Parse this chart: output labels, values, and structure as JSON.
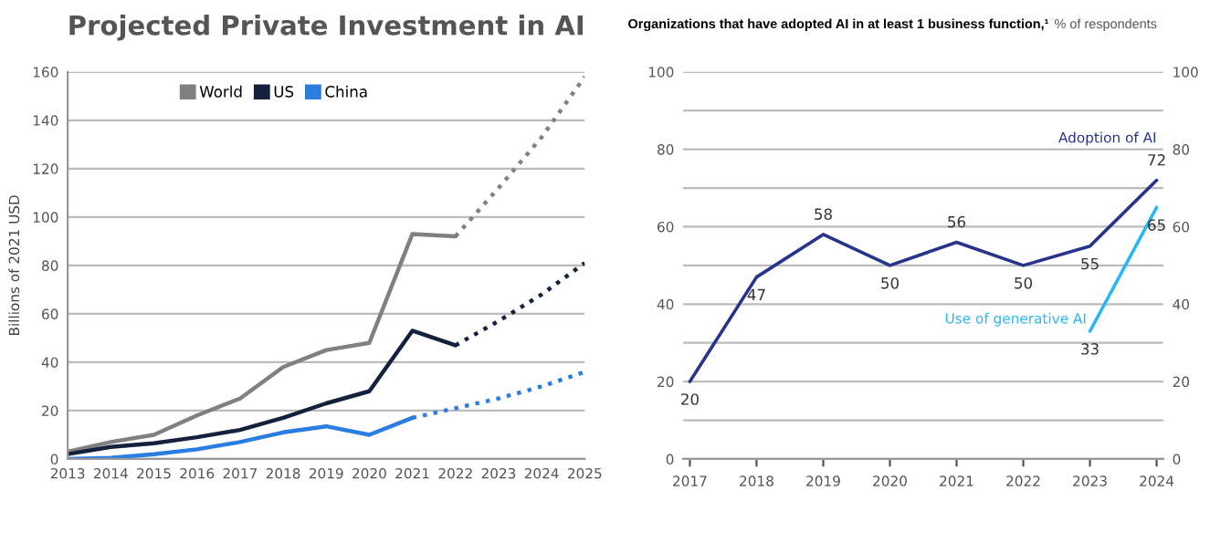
{
  "chart_data": [
    {
      "type": "line",
      "title": "Projected Private Investment in AI",
      "ylabel": "Billions of 2021 USD",
      "xlim": [
        2013,
        2025
      ],
      "xticks": [
        2013,
        2014,
        2015,
        2016,
        2017,
        2018,
        2019,
        2020,
        2021,
        2022,
        2023,
        2024,
        2025
      ],
      "ylim": [
        0,
        160
      ],
      "yticks": [
        0,
        20,
        40,
        60,
        80,
        100,
        120,
        140,
        160
      ],
      "grid": "y",
      "legend": "top",
      "marker": "none",
      "series": [
        {
          "name": "World",
          "color": "#808080",
          "line_style": "solid",
          "x": [
            2013,
            2014,
            2015,
            2016,
            2017,
            2018,
            2019,
            2020,
            2021,
            2022
          ],
          "values": [
            3,
            7,
            10,
            18,
            25,
            38,
            45,
            48,
            93,
            92
          ]
        },
        {
          "name": "US",
          "color": "#14213d",
          "line_style": "solid",
          "x": [
            2013,
            2014,
            2015,
            2016,
            2017,
            2018,
            2019,
            2020,
            2021,
            2022
          ],
          "values": [
            2,
            5,
            6.5,
            9,
            12,
            17,
            23,
            28,
            53,
            47
          ]
        },
        {
          "name": "China",
          "color": "#2a7de1",
          "line_style": "solid",
          "x": [
            2013,
            2014,
            2015,
            2016,
            2017,
            2018,
            2019,
            2020,
            2021
          ],
          "values": [
            0,
            0.5,
            2,
            4,
            7,
            11,
            13.5,
            10,
            17
          ]
        },
        {
          "color": "#808080",
          "line_style": "dotted",
          "x": [
            2022,
            2023,
            2024,
            2025
          ],
          "values": [
            92,
            112,
            133,
            158
          ]
        },
        {
          "color": "#14213d",
          "line_style": "dotted",
          "x": [
            2022,
            2023,
            2024,
            2025
          ],
          "values": [
            47,
            57,
            68,
            81
          ]
        },
        {
          "color": "#2a7de1",
          "line_style": "dotted",
          "x": [
            2021,
            2022,
            2023,
            2024,
            2025
          ],
          "values": [
            17,
            21,
            25,
            30,
            36
          ]
        }
      ]
    },
    {
      "type": "line",
      "title": "Organizations that have adopted AI in at least 1 business function,¹",
      "subtitle": "% of respondents",
      "categories": [
        "2017",
        "2018",
        "2019",
        "2020",
        "2021",
        "2022",
        "2023",
        "2024"
      ],
      "ylim": [
        0,
        100
      ],
      "yticks": [
        0,
        {
          "value": 10,
          "label": null
        },
        20,
        {
          "value": 30,
          "label": null
        },
        40,
        {
          "value": 50,
          "label": null
        },
        60,
        {
          "value": 70,
          "label": null
        },
        80,
        {
          "value": 90,
          "label": null
        },
        100
      ],
      "y2lim": [
        0,
        100
      ],
      "y2ticks": [
        0,
        20,
        40,
        60,
        80,
        100
      ],
      "grid": "y",
      "data_labels": true,
      "marker": "none",
      "series": [
        {
          "name": "Adoption of AI",
          "color": "#27348b",
          "values": [
            20,
            47,
            58,
            50,
            56,
            50,
            55,
            72
          ]
        },
        {
          "name": "Use of generative AI",
          "color": "#29b6f6",
          "values": [
            null,
            null,
            null,
            null,
            null,
            null,
            33,
            65
          ]
        }
      ]
    }
  ]
}
